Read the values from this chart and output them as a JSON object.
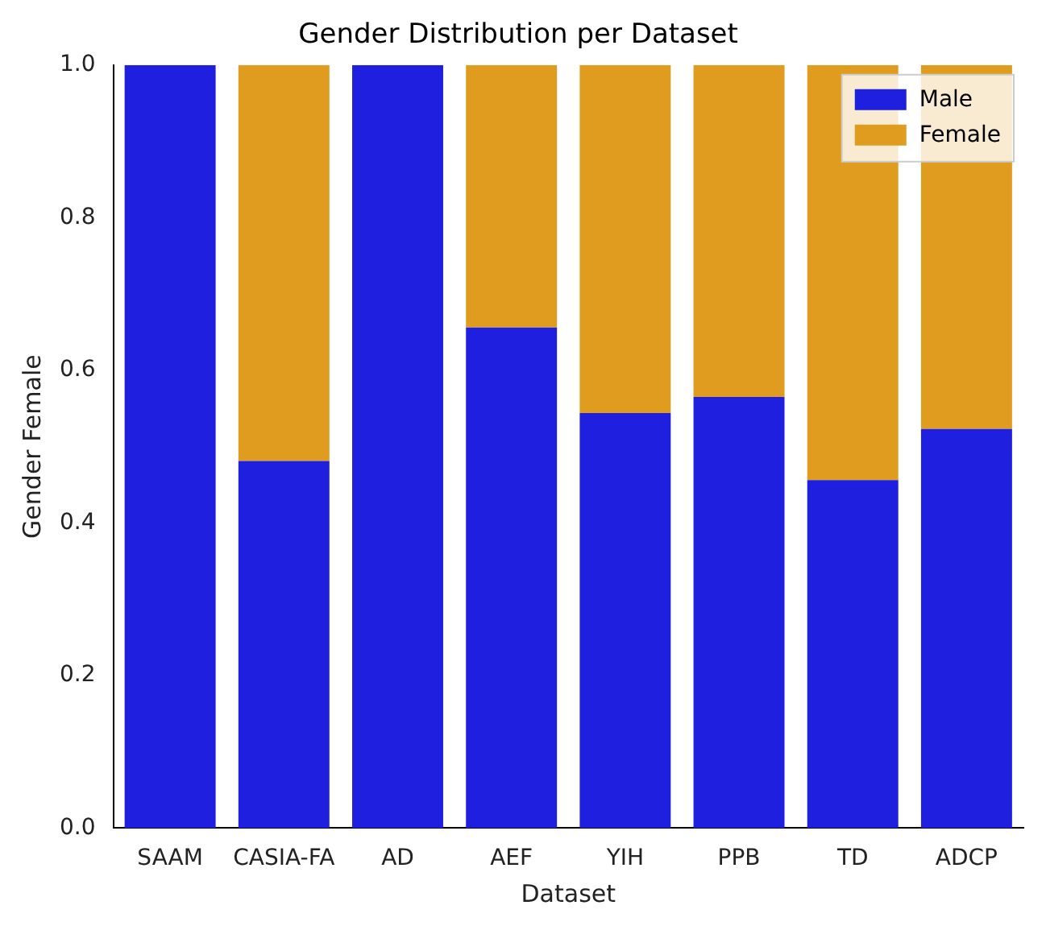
{
  "chart_data": {
    "type": "bar",
    "title": "Gender Distribution per Dataset",
    "xlabel": "Dataset",
    "ylabel": "Gender Female",
    "categories": [
      "SAAM",
      "CASIA-FA",
      "AD",
      "AEF",
      "YIH",
      "PPB",
      "TD",
      "ADCP"
    ],
    "series": [
      {
        "name": "Male",
        "color": "#1f1fe0",
        "values": [
          1.0,
          0.481,
          1.0,
          0.656,
          0.544,
          0.565,
          0.456,
          0.523
        ]
      },
      {
        "name": "Female",
        "color": "#e09c1f",
        "values": [
          0.0,
          0.519,
          0.0,
          0.344,
          0.456,
          0.435,
          0.544,
          0.477
        ]
      }
    ],
    "stacked": true,
    "ylim": [
      0,
      1
    ],
    "yticks": [
      {
        "value": 0,
        "label": "0.0"
      },
      0.2,
      0.4,
      0.6,
      0.8,
      {
        "value": 1,
        "label": "1.0"
      }
    ],
    "grid": false,
    "legend": "top right"
  }
}
